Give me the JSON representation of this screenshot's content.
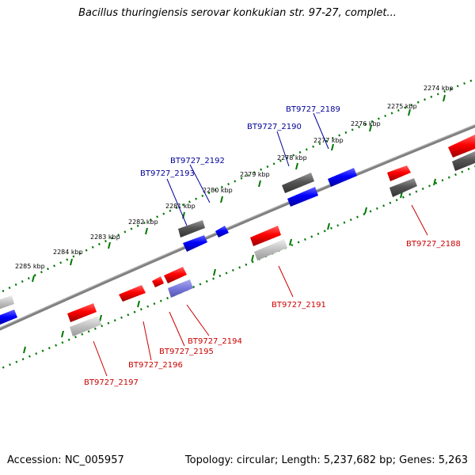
{
  "title": "Bacillus thuringiensis serovar konkukian str. 97-27, complet...",
  "footer": {
    "accession": "Accession: NC_005957",
    "summary": "Topology: circular; Length: 5,237,682 bp; Genes: 5,263"
  },
  "colors": {
    "forward_gene": "#ff0000",
    "reverse_gene": "#0000ff",
    "forward_label": "#cc0000",
    "reverse_label": "#000099",
    "tick": "#007700",
    "backbone": "#808080",
    "cds_dark": "#555555",
    "cds_light": "#c0c0c0",
    "rna": "#7777dd"
  },
  "ticks": [
    "2274 kbp",
    "2275 kbp",
    "2276 kbp",
    "2277 kbp",
    "2278 kbp",
    "2279 kbp",
    "2280 kbp",
    "2281 kbp",
    "2282 kbp",
    "2283 kbp",
    "2284 kbp",
    "2285 kbp"
  ],
  "gene_labels": {
    "reverse": [
      "BT9727_2189",
      "BT9727_2190",
      "BT9727_2192",
      "BT9727_2193"
    ],
    "forward": [
      "BT9727_2188",
      "BT9727_2191",
      "BT9727_2194",
      "BT9727_2195",
      "BT9727_2196",
      "BT9727_2197"
    ]
  }
}
